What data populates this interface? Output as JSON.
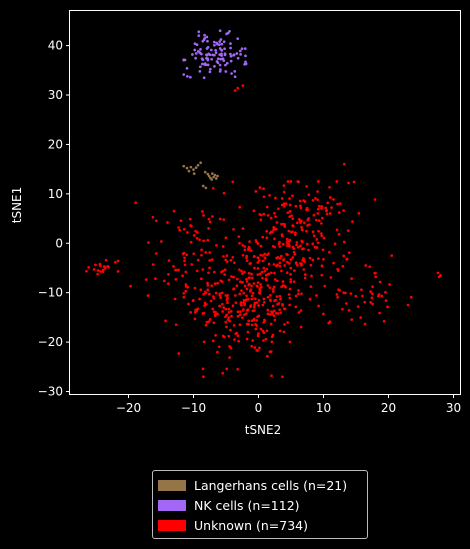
{
  "chart_data": {
    "type": "scatter",
    "title": "",
    "xlabel": "tSNE2",
    "ylabel": "tSNE1",
    "xlim": [
      -29,
      31
    ],
    "ylim": [
      -30.5,
      47
    ],
    "xticks": [
      -20,
      -10,
      0,
      10,
      20,
      30
    ],
    "yticks": [
      -30,
      -20,
      -10,
      0,
      10,
      20,
      30,
      40
    ],
    "grid": false,
    "legend_position": "bottom-center, below the plot",
    "series": [
      {
        "name": "Langerhans cells (n=21)",
        "color": "#957547",
        "n": 21,
        "points": [
          [
            -11.5,
            15.6
          ],
          [
            -11.0,
            15.2
          ],
          [
            -10.4,
            15.4
          ],
          [
            -10.0,
            14.9
          ],
          [
            -9.6,
            15.3
          ],
          [
            -9.3,
            15.8
          ],
          [
            -8.9,
            16.3
          ],
          [
            -10.7,
            14.6
          ],
          [
            -9.9,
            14.1
          ],
          [
            -8.5,
            11.6
          ],
          [
            -8.1,
            11.2
          ],
          [
            -7.6,
            13.6
          ],
          [
            -7.4,
            13.2
          ],
          [
            -7.1,
            14.1
          ],
          [
            -6.9,
            13.4
          ],
          [
            -6.7,
            13.8
          ],
          [
            -6.5,
            13.1
          ],
          [
            -7.2,
            12.9
          ],
          [
            -6.3,
            13.6
          ],
          [
            -7.8,
            14.0
          ],
          [
            -8.2,
            14.4
          ]
        ]
      },
      {
        "name": "NK cells (n=112)",
        "color": "#a367f5",
        "n": 112,
        "cluster": {
          "center": [
            -6.7,
            38.0
          ],
          "spread": [
            2.4,
            2.0
          ]
        },
        "points": [
          [
            -11.0,
            35.4
          ],
          [
            -3.2,
            41.4
          ],
          [
            -5.9,
            43.0
          ],
          [
            -8.3,
            42.1
          ],
          [
            -11.3,
            37.1
          ],
          [
            -3.6,
            33.7
          ],
          [
            -1.9,
            36.3
          ],
          [
            -2.8,
            38.9
          ]
        ]
      },
      {
        "name": "Unknown (n=734)",
        "color": "#ff0000",
        "n": 734,
        "clusters": [
          {
            "center": [
              -1.5,
              -11.5
            ],
            "spread": [
              4.5,
              6.0
            ],
            "n": 330
          },
          {
            "center": [
              6.5,
              1.5
            ],
            "spread": [
              3.8,
              5.5
            ],
            "n": 230
          },
          {
            "center": [
              16.0,
              -10.5
            ],
            "spread": [
              2.5,
              3.0
            ],
            "n": 40
          },
          {
            "center": [
              -23.5,
              -4.8
            ],
            "spread": [
              1.3,
              0.9
            ],
            "n": 20
          },
          {
            "center": [
              -11.0,
              -3.0
            ],
            "spread": [
              2.5,
              5.0
            ],
            "n": 60
          },
          {
            "center": [
              -4.5,
              -2.0
            ],
            "spread": [
              6.0,
              9.0
            ],
            "n": 40
          }
        ],
        "points": [
          [
            -3.2,
            31.4
          ],
          [
            -2.4,
            31.9
          ],
          [
            -3.6,
            30.9
          ],
          [
            27.6,
            -6.0
          ],
          [
            28.0,
            -6.5
          ],
          [
            27.8,
            -6.8
          ],
          [
            13.2,
            16.0
          ],
          [
            -13.0,
            6.5
          ],
          [
            -14.3,
            -15.7
          ],
          [
            -17.0,
            -10.6
          ],
          [
            23.0,
            -12.5
          ],
          [
            20.5,
            -2.5
          ],
          [
            -5.5,
            -26.3
          ],
          [
            2.0,
            -26.8
          ],
          [
            -3.2,
            -25.5
          ]
        ]
      }
    ]
  },
  "legend": {
    "items": [
      {
        "label": "Langerhans cells (n=21)",
        "color": "#957547"
      },
      {
        "label": "NK cells (n=112)",
        "color": "#a367f5"
      },
      {
        "label": "Unknown (n=734)",
        "color": "#ff0000"
      }
    ]
  }
}
